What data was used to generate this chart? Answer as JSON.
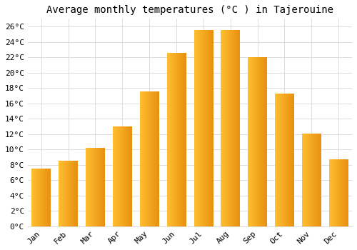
{
  "title": "Average monthly temperatures (°C ) in Tajerouine",
  "months": [
    "Jan",
    "Feb",
    "Mar",
    "Apr",
    "May",
    "Jun",
    "Jul",
    "Aug",
    "Sep",
    "Oct",
    "Nov",
    "Dec"
  ],
  "values": [
    7.5,
    8.5,
    10.2,
    13.0,
    17.5,
    22.5,
    25.5,
    25.5,
    22.0,
    17.2,
    12.0,
    8.7
  ],
  "bar_color_left": "#FFBF30",
  "bar_color_right": "#E89010",
  "background_color": "#FFFFFF",
  "grid_color": "#DDDDDD",
  "ylim": [
    0,
    27
  ],
  "ytick_step": 2,
  "title_fontsize": 10,
  "tick_fontsize": 8,
  "font_family": "monospace"
}
